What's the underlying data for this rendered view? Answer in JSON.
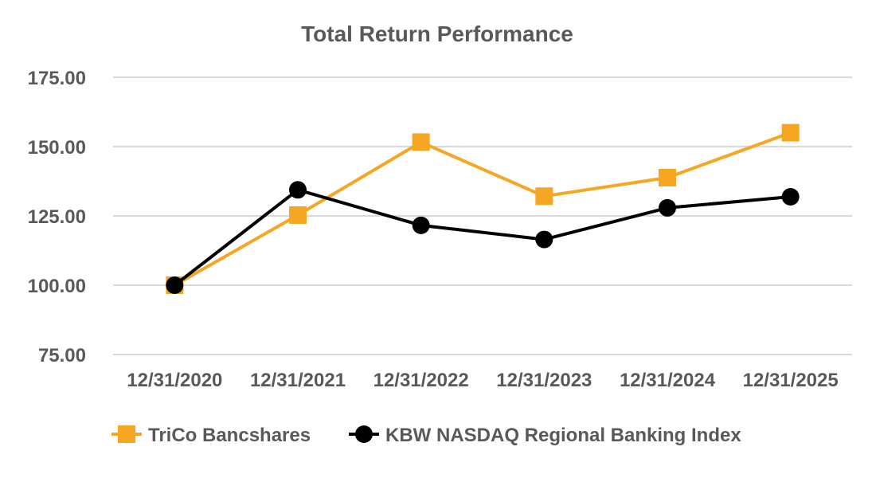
{
  "chart_data": {
    "type": "line",
    "title": "Total Return Performance",
    "xlabel": "",
    "ylabel": "",
    "categories": [
      "12/31/2020",
      "12/31/2021",
      "12/31/2022",
      "12/31/2023",
      "12/31/2024",
      "12/31/2025"
    ],
    "yticks": [
      "75.00",
      "100.00",
      "125.00",
      "150.00",
      "175.00"
    ],
    "ylim": [
      75,
      175
    ],
    "grid": true,
    "legend_position": "bottom",
    "series": [
      {
        "name": "TriCo Bancshares",
        "values": [
          100.0,
          125.3,
          151.6,
          132.1,
          138.8,
          155.0
        ],
        "color": "#F5A623",
        "marker": "square"
      },
      {
        "name": "KBW NASDAQ Regional Banking Index",
        "values": [
          100.0,
          134.4,
          121.6,
          116.5,
          127.9,
          131.9
        ],
        "color": "#000000",
        "marker": "circle"
      }
    ]
  }
}
